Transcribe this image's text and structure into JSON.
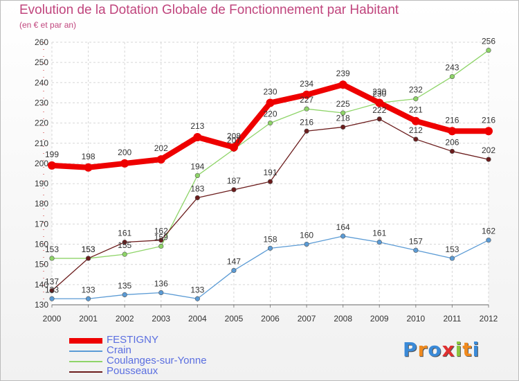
{
  "title": "Evolution de la Dotation Globale de Fonctionnement par Habitant",
  "subtitle": "(en € et par an)",
  "logo": {
    "text": "Proxiti",
    "letter_colors": [
      "#3a8ad8",
      "#f08a1e",
      "#3a8ad8",
      "#e03030",
      "#8cc63f",
      "#f08a1e",
      "#3a8ad8"
    ]
  },
  "chart_data": {
    "type": "line",
    "x": [
      "2000",
      "2001",
      "2002",
      "2003",
      "2004",
      "2005",
      "2006",
      "2007",
      "2008",
      "2009",
      "2010",
      "2011",
      "2012"
    ],
    "ylim": [
      130,
      260
    ],
    "yticks": [
      "130",
      "140",
      "150",
      "160",
      "170",
      "180",
      "190",
      "200",
      "210",
      "220",
      "230",
      "240",
      "250",
      "260"
    ],
    "grid": true,
    "legend_position": "bottom-left",
    "series": [
      {
        "name": "Crain",
        "color": "#5b9bd5",
        "emphasis": false,
        "values": [
          133,
          133,
          135,
          136,
          133,
          147,
          158,
          160,
          164,
          161,
          157,
          153,
          162
        ]
      },
      {
        "name": "Coulanges-sur-Yonne",
        "color": "#8ed468",
        "emphasis": false,
        "values": [
          153,
          153,
          155,
          159,
          194,
          207,
          220,
          227,
          225,
          230,
          232,
          243,
          256
        ]
      },
      {
        "name": "Pousseaux",
        "color": "#6b1c1c",
        "emphasis": false,
        "values": [
          137,
          153,
          161,
          162,
          183,
          187,
          191,
          216,
          218,
          222,
          212,
          206,
          202
        ]
      },
      {
        "name": "FESTIGNY",
        "color": "#ee0000",
        "emphasis": true,
        "values": [
          199,
          198,
          200,
          202,
          213,
          208,
          230,
          234,
          239,
          230,
          221,
          216,
          216
        ]
      }
    ],
    "legend_order": [
      "FESTIGNY",
      "Crain",
      "Coulanges-sur-Yonne",
      "Pousseaux"
    ]
  }
}
